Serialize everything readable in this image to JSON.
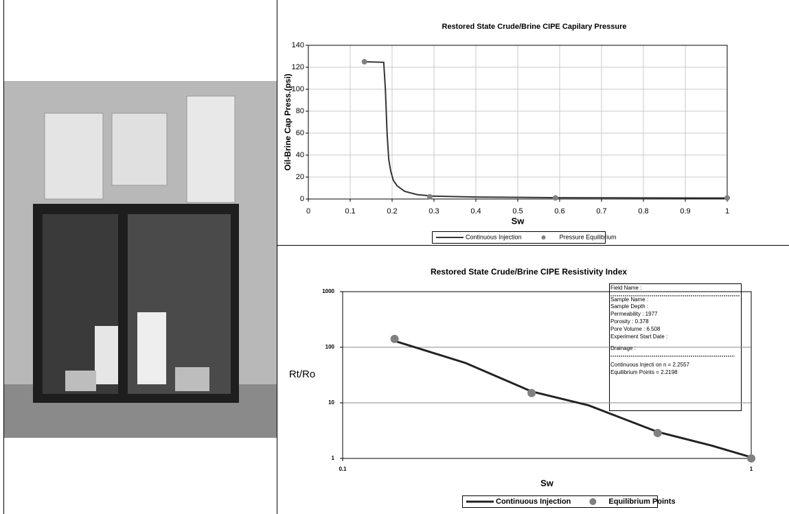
{
  "chart_data": [
    {
      "type": "line",
      "title": "Restored State Crude/Brine CIPE Capilary Pressure",
      "xlabel": "Sw",
      "ylabel": "Oil-Brine Cap Press.(psi)",
      "xlim": [
        0,
        1
      ],
      "xticks": [
        0,
        0.1,
        0.2,
        0.3,
        0.4,
        0.5,
        0.6,
        0.7,
        0.8,
        0.9,
        1
      ],
      "ylim": [
        0,
        140
      ],
      "yticks": [
        0,
        20,
        40,
        60,
        80,
        100,
        120,
        140
      ],
      "grid": true,
      "series": [
        {
          "name": "Continuous Injection",
          "mode": "line",
          "color": "#333333",
          "x": [
            0.134,
            0.18,
            0.184,
            0.188,
            0.192,
            0.197,
            0.203,
            0.212,
            0.23,
            0.26,
            0.3,
            0.4,
            0.6,
            0.8,
            1
          ],
          "values": [
            125,
            124.5,
            100,
            60,
            36,
            25,
            17,
            12,
            7,
            4,
            2.6,
            1.8,
            1.2,
            1,
            0.9
          ]
        },
        {
          "name": "Pressure Equilibrium",
          "mode": "markers",
          "color": "#808080",
          "x": [
            0.134,
            0.29,
            0.59,
            1
          ],
          "values": [
            125,
            2,
            1,
            1
          ]
        }
      ]
    },
    {
      "type": "line",
      "title": "Restored State Crude/Brine CIPE Resistivity Index",
      "xlabel": "Sw",
      "ylabel": "Rt/Ro",
      "xscale": "log",
      "yscale": "log",
      "xlim": [
        0.1,
        1
      ],
      "xticks": [
        0.1,
        1
      ],
      "ylim": [
        1,
        1000
      ],
      "yticks": [
        1,
        10,
        100,
        1000
      ],
      "grid": true,
      "series": [
        {
          "name": "Continuous Injection",
          "mode": "line",
          "color": "#222222",
          "x": [
            0.134,
            0.2,
            0.29,
            0.4,
            0.59,
            0.8,
            1
          ],
          "values": [
            130,
            52,
            16,
            9,
            3,
            1.7,
            1.05
          ]
        },
        {
          "name": "Equilibrium Points",
          "mode": "markers",
          "color": "#808080",
          "x": [
            0.134,
            0.29,
            0.59,
            1
          ],
          "values": [
            141,
            15,
            2.86,
            1
          ]
        }
      ],
      "annotations": [
        "Field Name :",
        "Sample Name :",
        "Sample Depth :",
        "Permeability : 1977",
        "Porosity : 0.378",
        "Pore Volume : 6.508",
        "Experiment Start Date :",
        "Drainage :",
        "Continuous Injecti on n = 2.2557",
        "Equilibrium Points = 2.2198"
      ]
    }
  ]
}
